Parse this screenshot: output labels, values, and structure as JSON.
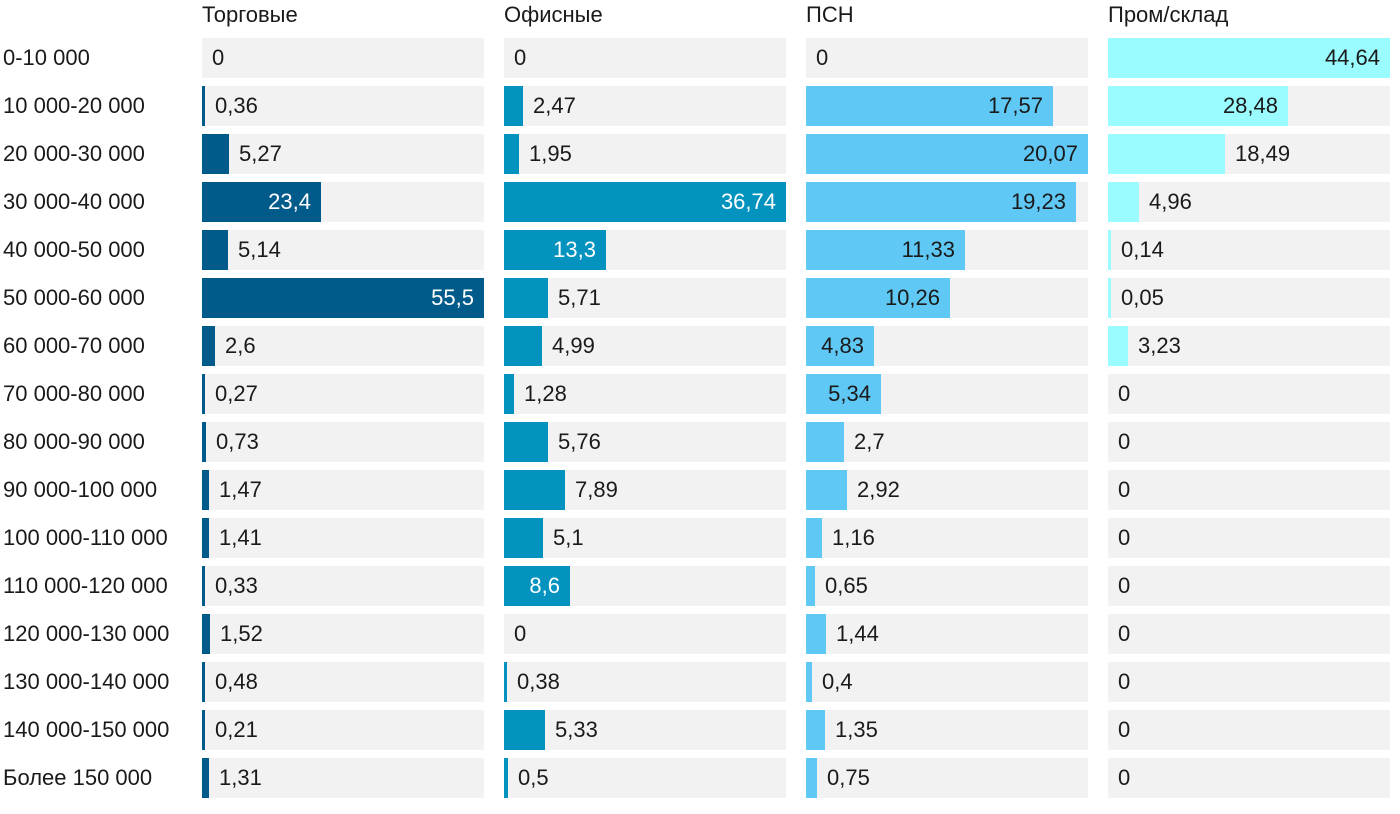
{
  "chart_data": {
    "type": "bar",
    "orientation": "horizontal",
    "layout": "small-multiples",
    "categories": [
      "0-10 000",
      "10 000-20 000",
      "20 000-30 000",
      "30 000-40 000",
      "40 000-50 000",
      "50 000-60 000",
      "60 000-70 000",
      "70 000-80 000",
      "80 000-90 000",
      "90 000-100 000",
      "100 000-110 000",
      "110 000-120 000",
      "120 000-130 000",
      "130 000-140 000",
      "140 000-150 000",
      "Более 150 000"
    ],
    "series": [
      {
        "name": "Торговые",
        "color": "#005b8a",
        "values": [
          0,
          0.36,
          5.27,
          23.4,
          5.14,
          55.5,
          2.6,
          0.27,
          0.73,
          1.47,
          1.41,
          0.33,
          1.52,
          0.48,
          0.21,
          1.31
        ],
        "labels": [
          "0",
          "0,36",
          "5,27",
          "23,4",
          "5,14",
          "55,5",
          "2,6",
          "0,27",
          "0,73",
          "1,47",
          "1,41",
          "0,33",
          "1,52",
          "0,48",
          "0,21",
          "1,31"
        ]
      },
      {
        "name": "Офисные",
        "color": "#0493bf",
        "values": [
          0,
          2.47,
          1.95,
          36.74,
          13.3,
          5.71,
          4.99,
          1.28,
          5.76,
          7.89,
          5.1,
          8.6,
          0,
          0.38,
          5.33,
          0.5
        ],
        "labels": [
          "0",
          "2,47",
          "1,95",
          "36,74",
          "13,3",
          "5,71",
          "4,99",
          "1,28",
          "5,76",
          "7,89",
          "5,1",
          "8,6",
          "0",
          "0,38",
          "5,33",
          "0,5"
        ]
      },
      {
        "name": "ПСН",
        "color": "#5fc8f5",
        "values": [
          0,
          17.57,
          20.07,
          19.23,
          11.33,
          10.26,
          4.83,
          5.34,
          2.7,
          2.92,
          1.16,
          0.65,
          1.44,
          0.4,
          1.35,
          0.75
        ],
        "labels": [
          "0",
          "17,57",
          "20,07",
          "19,23",
          "11,33",
          "10,26",
          "4,83",
          "5,34",
          "2,7",
          "2,92",
          "1,16",
          "0,65",
          "1,44",
          "0,4",
          "1,35",
          "0,75"
        ]
      },
      {
        "name": "Пром/склад",
        "color": "#9afcff",
        "values": [
          44.64,
          28.48,
          18.49,
          4.96,
          0.14,
          0.05,
          3.23,
          0,
          0,
          0,
          0,
          0,
          0,
          0,
          0,
          0
        ],
        "labels": [
          "44,64",
          "28,48",
          "18,49",
          "4,96",
          "0,14",
          "0,05",
          "3,23",
          "0",
          "0",
          "0",
          "0",
          "0",
          "0",
          "0",
          "0",
          "0"
        ]
      }
    ],
    "panel_max": [
      55.5,
      36.74,
      20.07,
      44.64
    ],
    "label_inside": [
      [
        false,
        false,
        false,
        true,
        false,
        true,
        false,
        false,
        false,
        false,
        false,
        false,
        false,
        false,
        false,
        false
      ],
      [
        false,
        false,
        false,
        true,
        true,
        false,
        false,
        false,
        false,
        false,
        false,
        true,
        false,
        false,
        false,
        false
      ],
      [
        false,
        true,
        true,
        true,
        true,
        true,
        true,
        true,
        false,
        false,
        false,
        false,
        false,
        false,
        false,
        false
      ],
      [
        true,
        true,
        false,
        false,
        false,
        false,
        false,
        false,
        false,
        false,
        false,
        false,
        false,
        false,
        false,
        false
      ]
    ],
    "inside_label_color": [
      "#ffffff",
      "#ffffff",
      "#1a1a1a",
      "#1a1a1a"
    ],
    "outside_label_color": "#1a1a1a",
    "track_color": "#f2f2f2",
    "grid": false,
    "legend": "none"
  }
}
